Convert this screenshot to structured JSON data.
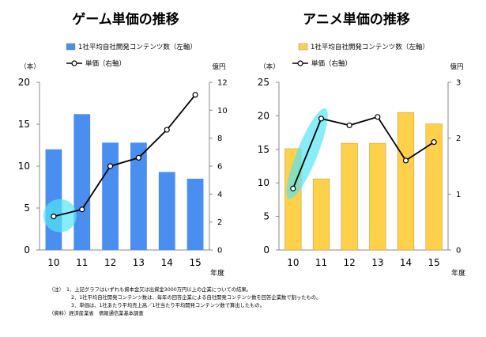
{
  "chart_data": [
    {
      "type": "bar+line",
      "title": "ゲーム単価の推移",
      "categories": [
        "10",
        "11",
        "12",
        "13",
        "14",
        "15"
      ],
      "bar_series": {
        "name": "1社平均自社開発コンテンツ数（左軸）",
        "values": [
          12.0,
          16.2,
          12.8,
          12.8,
          9.3,
          8.5
        ],
        "color": "#4a8ef0"
      },
      "line_series": {
        "name": "単価（右軸）",
        "values": [
          2.4,
          2.9,
          6.0,
          6.6,
          8.6,
          11.1
        ],
        "color": "#000000"
      },
      "left_axis": {
        "unit": "（本）",
        "ylim": [
          0,
          20
        ],
        "ticks": [
          "0",
          "5",
          "10",
          "15",
          "20"
        ]
      },
      "right_axis": {
        "unit": "億円",
        "ylim": [
          0,
          12
        ],
        "ticks": [
          "0",
          "2",
          "4",
          "6",
          "8",
          "10",
          "12"
        ]
      },
      "xlabel": "年度",
      "highlight": {
        "shape": "circle",
        "near_category": "10",
        "color": "#55e6f2"
      }
    },
    {
      "type": "bar+line",
      "title": "アニメ単価の推移",
      "categories": [
        "10",
        "11",
        "12",
        "13",
        "14",
        "15"
      ],
      "bar_series": {
        "name": "1社平均自社開発コンテンツ数（左軸）",
        "values": [
          15.1,
          10.6,
          15.9,
          15.9,
          20.5,
          18.8
        ],
        "color": "#ffd04a"
      },
      "line_series": {
        "name": "単価（右軸）",
        "values": [
          1.1,
          2.35,
          2.23,
          2.38,
          1.6,
          1.93
        ],
        "color": "#000000"
      },
      "left_axis": {
        "unit": "（本）",
        "ylim": [
          0,
          25
        ],
        "ticks": [
          "0",
          "5",
          "10",
          "15",
          "20",
          "25"
        ]
      },
      "right_axis": {
        "unit": "億円",
        "ylim": [
          0,
          3
        ],
        "ticks": [
          "0",
          "1",
          "2",
          "3"
        ]
      },
      "xlabel": "年度",
      "highlight": {
        "shape": "ellipse",
        "near_category": "10-11",
        "color": "#55e6f2"
      }
    }
  ],
  "notes": [
    "（注）　1．上記グラフはいずれも資本金又は出資金3000万円以上の企業についての結果。",
    "2．1社平均自社開発コンテンツ数は、毎年の回答企業による自社開発コンテンツ数を回答企業数で割ったもの。",
    "3．単価は、1社あたり平均売上高／1社当たり平均開発コンテンツ数で算出したもの。",
    "（資料）経済産業省　情報通信業基本調査"
  ]
}
